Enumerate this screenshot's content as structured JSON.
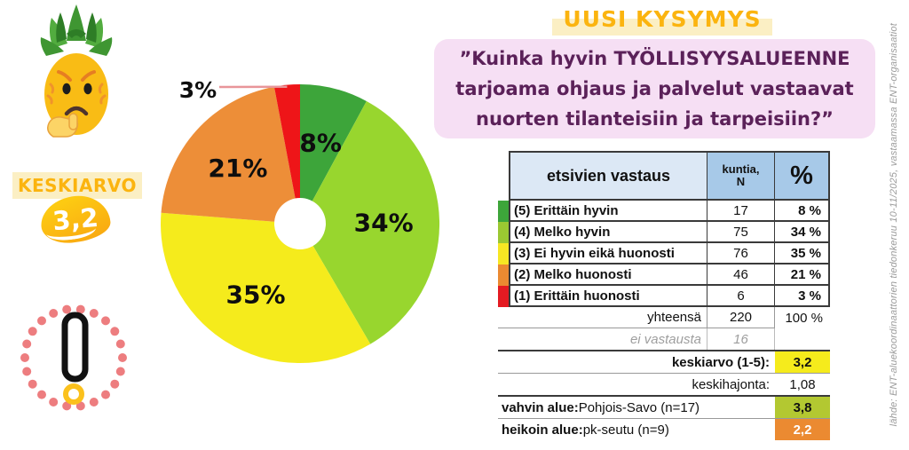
{
  "header": {
    "title": "UUSI KYSYMYS",
    "question_lines": [
      "”Kuinka hyvin TYÖLLISYYSALUEENNE",
      "tarjoama ohjaus ja palvelut vastaavat",
      "nuorten tilanteisiin ja tarpeisiin?”"
    ]
  },
  "badges": {
    "keskiarvo_label": "KESKIARVO",
    "keskiarvo_value": "3,2"
  },
  "icons": {
    "pineapple": "pineapple-thinking-emoji",
    "exclamation": "exclamation-alert-dotted-circle"
  },
  "chart_data": {
    "type": "pie",
    "title": "",
    "donut": true,
    "hole_ratio": 0.185,
    "start_angle_deg": 0,
    "direction": "clockwise",
    "categories": [
      "(5) Erittäin hyvin",
      "(4) Melko hyvin",
      "(3) Ei hyvin eikä huonosti",
      "(2) Melko huonosti",
      "(1) Erittäin huonosti"
    ],
    "values": [
      8,
      34,
      35,
      21,
      3
    ],
    "counts": [
      17,
      75,
      76,
      46,
      6
    ],
    "slice_labels": [
      "8%",
      "34%",
      "35%",
      "21%",
      "3%"
    ],
    "colors": [
      "#3DA53A",
      "#98D62E",
      "#F5EB1C",
      "#ED8E38",
      "#EE1518"
    ],
    "legend_position": "none"
  },
  "table": {
    "header": {
      "col1": "etsivien vastaus",
      "col2_line1": "kuntia,",
      "col2_line2": "N",
      "col3": "%"
    },
    "rows": [
      {
        "swatch": "#3DA53A",
        "label": "(5) Erittäin hyvin",
        "n": "17",
        "pct": "8 %"
      },
      {
        "swatch": "#9BC832",
        "label": "(4) Melko hyvin",
        "n": "75",
        "pct": "34 %"
      },
      {
        "swatch": "#F7E723",
        "label": "(3) Ei hyvin eikä huonosti",
        "n": "76",
        "pct": "35 %"
      },
      {
        "swatch": "#EB8A31",
        "label": "(2) Melko huonosti",
        "n": "46",
        "pct": "21 %"
      },
      {
        "swatch": "#E41B22",
        "label": "(1) Erittäin huonosti",
        "n": "6",
        "pct": "3 %"
      }
    ],
    "summary": {
      "total_label": "yhteensä",
      "total_n": "220",
      "total_pct": "100 %",
      "no_answer_label": "ei vastausta",
      "no_answer_n": "16",
      "mean_label": "keskiarvo (1-5):",
      "mean_value": "3,2",
      "sd_label": "keskihajonta:",
      "sd_value": "1,08",
      "best_label_bold": "vahvin alue:",
      "best_label_rest": " Pohjois-Savo (n=17)",
      "best_value": "3,8",
      "worst_label_bold": "heikoin alue:",
      "worst_label_rest": " pk-seutu (n=9)",
      "worst_value": "2,2"
    }
  },
  "source_note": "lähde: ENT-aluekoordinaattorien tiedonkeruu 10-11/2025, vastaamassa ENT-organisaatiot",
  "colors": {
    "accent_gold": "#FBB40F",
    "highlight_band": "#FBEFC4",
    "question_box_bg": "#F6DFF4",
    "question_text": "#5B2159",
    "table_header_label_bg": "#DCE8F5",
    "table_header_value_bg": "#A7C9E8",
    "mean_highlight": "#F5EB1C",
    "best_highlight": "#B3C831",
    "worst_highlight": "#EB8A31",
    "dot_ring_pink": "#ED7D7F",
    "dot_yellow": "#FBC11D",
    "source_text": "#9B9B9B"
  }
}
